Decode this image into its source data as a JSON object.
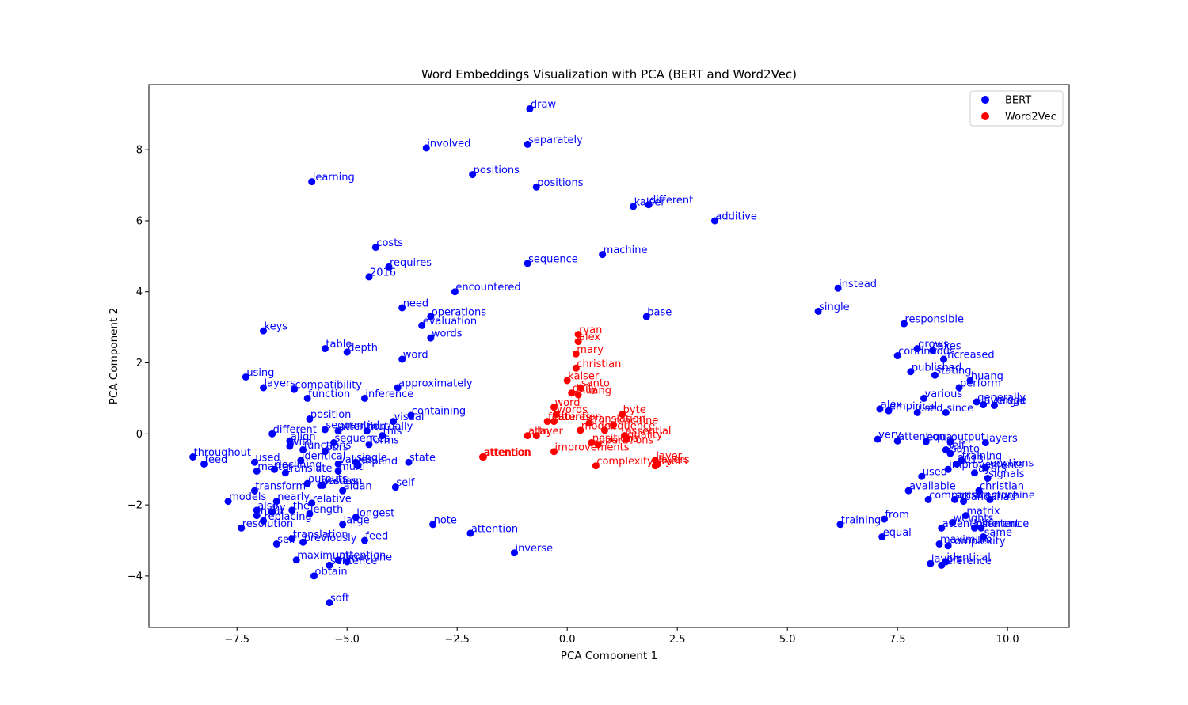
{
  "chart_data": {
    "type": "scatter",
    "title": "Word Embeddings Visualization with PCA (BERT and Word2Vec)",
    "xlabel": "PCA Component 1",
    "ylabel": "PCA Component 2",
    "xlim": [
      -9.5,
      11.4
    ],
    "ylim": [
      -5.45,
      9.83
    ],
    "xticks": [
      -7.5,
      -5.0,
      -2.5,
      0.0,
      2.5,
      5.0,
      7.5,
      10.0
    ],
    "xtick_labels": [
      "−7.5",
      "−5.0",
      "−2.5",
      "0.0",
      "2.5",
      "5.0",
      "7.5",
      "10.0"
    ],
    "yticks": [
      -4,
      -2,
      0,
      2,
      4,
      6,
      8
    ],
    "ytick_labels": [
      "−4",
      "−2",
      "0",
      "2",
      "4",
      "6",
      "8"
    ],
    "grid": false,
    "legend_position": "top-right",
    "series": [
      {
        "name": "BERT",
        "color": "#0000ff",
        "points": [
          {
            "label": "draw",
            "x": -0.85,
            "y": 9.15
          },
          {
            "label": "involved",
            "x": -3.2,
            "y": 8.05
          },
          {
            "label": "separately",
            "x": -0.9,
            "y": 8.15
          },
          {
            "label": "positions",
            "x": -2.15,
            "y": 7.3
          },
          {
            "label": "learning",
            "x": -5.8,
            "y": 7.1
          },
          {
            "label": "positions",
            "x": -0.7,
            "y": 6.95
          },
          {
            "label": "kaiser",
            "x": 1.5,
            "y": 6.4
          },
          {
            "label": "different",
            "x": 1.85,
            "y": 6.45
          },
          {
            "label": "additive",
            "x": 3.35,
            "y": 6.0
          },
          {
            "label": "costs",
            "x": -4.35,
            "y": 5.25
          },
          {
            "label": "machine",
            "x": 0.8,
            "y": 5.05
          },
          {
            "label": "requires",
            "x": -4.05,
            "y": 4.7
          },
          {
            "label": "sequence",
            "x": -0.9,
            "y": 4.8
          },
          {
            "label": "2016",
            "x": -4.5,
            "y": 4.42
          },
          {
            "label": "encountered",
            "x": -2.55,
            "y": 4.0
          },
          {
            "label": "instead",
            "x": 6.15,
            "y": 4.1
          },
          {
            "label": "need",
            "x": -3.75,
            "y": 3.55
          },
          {
            "label": "single",
            "x": 5.7,
            "y": 3.45
          },
          {
            "label": "operations",
            "x": -3.1,
            "y": 3.3
          },
          {
            "label": "base",
            "x": 1.8,
            "y": 3.3
          },
          {
            "label": "evaluation",
            "x": -3.3,
            "y": 3.05
          },
          {
            "label": "responsible",
            "x": 7.65,
            "y": 3.1
          },
          {
            "label": "keys",
            "x": -6.9,
            "y": 2.9
          },
          {
            "label": "words",
            "x": -3.1,
            "y": 2.7
          },
          {
            "label": "table",
            "x": -5.5,
            "y": 2.4
          },
          {
            "label": "depth",
            "x": -5.0,
            "y": 2.3
          },
          {
            "label": "grows",
            "x": 7.95,
            "y": 2.4
          },
          {
            "label": "continuous",
            "x": 7.5,
            "y": 2.2
          },
          {
            "label": "takes",
            "x": 8.3,
            "y": 2.35
          },
          {
            "label": "word",
            "x": -3.75,
            "y": 2.1
          },
          {
            "label": "increased",
            "x": 8.55,
            "y": 2.1
          },
          {
            "label": "published",
            "x": 7.8,
            "y": 1.75
          },
          {
            "label": "using",
            "x": -7.3,
            "y": 1.6
          },
          {
            "label": "stating",
            "x": 8.35,
            "y": 1.65
          },
          {
            "label": "huang",
            "x": 9.15,
            "y": 1.5
          },
          {
            "label": "perform",
            "x": 8.9,
            "y": 1.3
          },
          {
            "label": "layers",
            "x": -6.9,
            "y": 1.3
          },
          {
            "label": "compatibility",
            "x": -6.2,
            "y": 1.25
          },
          {
            "label": "approximately",
            "x": -3.85,
            "y": 1.3
          },
          {
            "label": "function",
            "x": -5.9,
            "y": 1.0
          },
          {
            "label": "inference",
            "x": -4.6,
            "y": 1.0
          },
          {
            "label": "various",
            "x": 8.1,
            "y": 1.0
          },
          {
            "label": "generally",
            "x": 9.3,
            "y": 0.9
          },
          {
            "label": "average",
            "x": 9.45,
            "y": 0.82
          },
          {
            "label": "target",
            "x": 9.7,
            "y": 0.8
          },
          {
            "label": "alex",
            "x": 7.1,
            "y": 0.7
          },
          {
            "label": "empirical",
            "x": 7.3,
            "y": 0.65
          },
          {
            "label": "used",
            "x": 7.95,
            "y": 0.6
          },
          {
            "label": "since",
            "x": 8.6,
            "y": 0.6
          },
          {
            "label": "containing",
            "x": -3.55,
            "y": 0.52
          },
          {
            "label": "position",
            "x": -5.85,
            "y": 0.42
          },
          {
            "label": "visual",
            "x": -3.95,
            "y": 0.35
          },
          {
            "label": "sequential",
            "x": -5.5,
            "y": 0.12
          },
          {
            "label": "attention",
            "x": -5.2,
            "y": 0.08
          },
          {
            "label": "mutually",
            "x": -4.55,
            "y": 0.08
          },
          {
            "label": "this",
            "x": -4.2,
            "y": -0.05
          },
          {
            "label": "different",
            "x": -6.7,
            "y": 0.0
          },
          {
            "label": "align",
            "x": -6.3,
            "y": -0.2
          },
          {
            "label": "sequences",
            "x": -5.3,
            "y": -0.25
          },
          {
            "label": "forms",
            "x": -4.5,
            "y": -0.3
          },
          {
            "label": "very",
            "x": 7.05,
            "y": -0.15
          },
          {
            "label": "attention",
            "x": 7.5,
            "y": -0.2
          },
          {
            "label": "equal",
            "x": 8.15,
            "y": -0.22
          },
          {
            "label": "output",
            "x": 8.7,
            "y": -0.22
          },
          {
            "label": "layers",
            "x": 9.5,
            "y": -0.25
          },
          {
            "label": "with",
            "x": -6.3,
            "y": -0.35
          },
          {
            "label": "functions",
            "x": -6.0,
            "y": -0.45
          },
          {
            "label": "ours",
            "x": -5.5,
            "y": -0.5
          },
          {
            "label": "self",
            "x": 8.6,
            "y": -0.45
          },
          {
            "label": "santo",
            "x": 8.7,
            "y": -0.55
          },
          {
            "label": "throughout",
            "x": -8.5,
            "y": -0.65
          },
          {
            "label": "used",
            "x": -7.1,
            "y": -0.8
          },
          {
            "label": "identical",
            "x": -6.05,
            "y": -0.75
          },
          {
            "label": "values",
            "x": -5.2,
            "y": -0.85
          },
          {
            "label": "single",
            "x": -4.8,
            "y": -0.8
          },
          {
            "label": "state",
            "x": -3.6,
            "y": -0.8
          },
          {
            "label": "training",
            "x": 8.95,
            "y": -0.75
          },
          {
            "label": "2013",
            "x": 8.85,
            "y": -0.85
          },
          {
            "label": "functions",
            "x": 9.5,
            "y": -0.95
          },
          {
            "label": "feed",
            "x": -8.25,
            "y": -0.85
          },
          {
            "label": "depend",
            "x": -4.75,
            "y": -0.9
          },
          {
            "label": "declining",
            "x": -6.65,
            "y": -1.0
          },
          {
            "label": "matter",
            "x": -7.05,
            "y": -1.05
          },
          {
            "label": "translate",
            "x": -6.4,
            "y": -1.1
          },
          {
            "label": "multi",
            "x": -5.2,
            "y": -1.05
          },
          {
            "label": "improvements",
            "x": 8.65,
            "y": -1.0
          },
          {
            "label": "layers",
            "x": 9.25,
            "y": -1.1
          },
          {
            "label": "signals",
            "x": 9.55,
            "y": -1.25
          },
          {
            "label": "outputs",
            "x": -5.9,
            "y": -1.4
          },
          {
            "label": "values",
            "x": -5.55,
            "y": -1.45
          },
          {
            "label": "position",
            "x": -5.6,
            "y": -1.45
          },
          {
            "label": "aidan",
            "x": -5.1,
            "y": -1.6
          },
          {
            "label": "self",
            "x": -3.9,
            "y": -1.5
          },
          {
            "label": "used",
            "x": 8.05,
            "y": -1.2
          },
          {
            "label": "available",
            "x": 7.75,
            "y": -1.6
          },
          {
            "label": "christian",
            "x": 9.35,
            "y": -1.6
          },
          {
            "label": "transform",
            "x": -7.1,
            "y": -1.6
          },
          {
            "label": "nearly",
            "x": -6.6,
            "y": -1.9
          },
          {
            "label": "relative",
            "x": -5.8,
            "y": -1.95
          },
          {
            "label": "comparison",
            "x": 8.2,
            "y": -1.85
          },
          {
            "label": "architecture",
            "x": 8.8,
            "y": -1.85
          },
          {
            "label": "bahdanau",
            "x": 9.0,
            "y": -1.9
          },
          {
            "label": "machine",
            "x": 9.6,
            "y": -1.85
          },
          {
            "label": "models",
            "x": -7.7,
            "y": -1.9
          },
          {
            "label": "also",
            "x": -7.05,
            "y": -2.15
          },
          {
            "label": "by",
            "x": -6.7,
            "y": -2.2
          },
          {
            "label": "the",
            "x": -6.25,
            "y": -2.15
          },
          {
            "label": "length",
            "x": -5.85,
            "y": -2.25
          },
          {
            "label": "input",
            "x": -7.05,
            "y": -2.3
          },
          {
            "label": "longest",
            "x": -4.8,
            "y": -2.35
          },
          {
            "label": "matrix",
            "x": 9.05,
            "y": -2.3
          },
          {
            "label": "replacing",
            "x": -6.9,
            "y": -2.45
          },
          {
            "label": "large",
            "x": -5.1,
            "y": -2.55
          },
          {
            "label": "note",
            "x": -3.05,
            "y": -2.55
          },
          {
            "label": "training",
            "x": 6.2,
            "y": -2.55
          },
          {
            "label": "from",
            "x": 7.2,
            "y": -2.4
          },
          {
            "label": "weights",
            "x": 8.75,
            "y": -2.5
          },
          {
            "label": "attention",
            "x": 8.5,
            "y": -2.65
          },
          {
            "label": "different",
            "x": 9.25,
            "y": -2.65
          },
          {
            "label": "sentence",
            "x": 9.4,
            "y": -2.65
          },
          {
            "label": "resolution",
            "x": -7.4,
            "y": -2.65
          },
          {
            "label": "attention",
            "x": -2.2,
            "y": -2.8
          },
          {
            "label": "feed",
            "x": -4.6,
            "y": -3.0
          },
          {
            "label": "equal",
            "x": 7.15,
            "y": -2.9
          },
          {
            "label": "same",
            "x": 9.45,
            "y": -2.9
          },
          {
            "label": "translation",
            "x": -6.25,
            "y": -2.95
          },
          {
            "label": "self",
            "x": -6.6,
            "y": -3.1
          },
          {
            "label": "previously",
            "x": -6.0,
            "y": -3.05
          },
          {
            "label": "maximum",
            "x": 8.45,
            "y": -3.1
          },
          {
            "label": "complexity",
            "x": 8.65,
            "y": -3.15
          },
          {
            "label": "inverse",
            "x": -1.2,
            "y": -3.35
          },
          {
            "label": "maximum",
            "x": -6.15,
            "y": -3.55
          },
          {
            "label": "attention",
            "x": -5.2,
            "y": -3.55
          },
          {
            "label": "machine",
            "x": -5.0,
            "y": -3.6
          },
          {
            "label": "sentence",
            "x": -5.4,
            "y": -3.7
          },
          {
            "label": "layers",
            "x": 8.25,
            "y": -3.65
          },
          {
            "label": "identical",
            "x": 8.6,
            "y": -3.6
          },
          {
            "label": "reference",
            "x": 8.5,
            "y": -3.7
          },
          {
            "label": "obtain",
            "x": -5.75,
            "y": -4.0
          },
          {
            "label": "soft",
            "x": -5.4,
            "y": -4.75
          }
        ]
      },
      {
        "name": "Word2Vec",
        "color": "#ff0000",
        "points": [
          {
            "label": "ryan",
            "x": 0.25,
            "y": 2.8
          },
          {
            "label": "alex",
            "x": 0.25,
            "y": 2.6
          },
          {
            "label": "mary",
            "x": 0.2,
            "y": 2.25
          },
          {
            "label": "christian",
            "x": 0.2,
            "y": 1.85
          },
          {
            "label": "kaiser",
            "x": 0.0,
            "y": 1.5
          },
          {
            "label": "santo",
            "x": 0.3,
            "y": 1.3
          },
          {
            "label": "daily",
            "x": 0.1,
            "y": 1.15
          },
          {
            "label": "huang",
            "x": 0.25,
            "y": 1.1
          },
          {
            "label": "word",
            "x": -0.3,
            "y": 0.75
          },
          {
            "label": "words",
            "x": -0.25,
            "y": 0.55
          },
          {
            "label": "byte",
            "x": 1.25,
            "y": 0.55
          },
          {
            "label": "features",
            "x": -0.45,
            "y": 0.35
          },
          {
            "label": "attention",
            "x": -0.3,
            "y": 0.35
          },
          {
            "label": "translation",
            "x": 0.5,
            "y": 0.3
          },
          {
            "label": "machine",
            "x": 1.05,
            "y": 0.25
          },
          {
            "label": "sequence",
            "x": 0.85,
            "y": 0.1
          },
          {
            "label": "model",
            "x": 0.3,
            "y": 0.1
          },
          {
            "label": "attn",
            "x": -0.9,
            "y": -0.05
          },
          {
            "label": "layer",
            "x": -0.7,
            "y": -0.05
          },
          {
            "label": "essential",
            "x": 1.3,
            "y": -0.05
          },
          {
            "label": "quality",
            "x": 1.35,
            "y": -0.15
          },
          {
            "label": "positions",
            "x": 0.55,
            "y": -0.25
          },
          {
            "label": "operations",
            "x": 0.7,
            "y": -0.3
          },
          {
            "label": "improvements",
            "x": -0.3,
            "y": -0.5
          },
          {
            "label": "attention",
            "x": -1.9,
            "y": -0.65
          },
          {
            "label": "attention",
            "x": -1.92,
            "y": -0.65
          },
          {
            "label": "layer",
            "x": 2.0,
            "y": -0.75
          },
          {
            "label": "layers",
            "x": 2.05,
            "y": -0.85
          },
          {
            "label": "layers",
            "x": 2.0,
            "y": -0.9
          },
          {
            "label": "complexity",
            "x": 0.65,
            "y": -0.9
          }
        ]
      }
    ]
  }
}
